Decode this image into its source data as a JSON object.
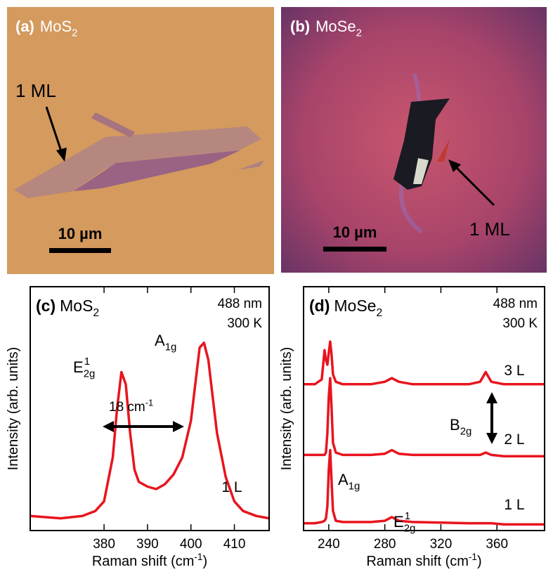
{
  "panels": [
    {
      "label": "(a)",
      "material": {
        "base": "MoS",
        "sub": "2"
      },
      "scale_bar": "10 µm",
      "annotation": "1 ML"
    },
    {
      "label": "(b)",
      "material": {
        "base": "MoSe",
        "sub": "2"
      },
      "scale_bar": "10 µm",
      "annotation": "1 ML"
    }
  ],
  "chart_data": [
    {
      "type": "line",
      "label": "(c)",
      "material": {
        "base": "MoS",
        "sub": "2"
      },
      "conditions": [
        "488 nm",
        "300 K"
      ],
      "xlabel": {
        "text": "Raman shift (cm",
        "sup": "-1",
        "end": ")"
      },
      "ylabel": "Intensity (arb. units)",
      "x": [
        363,
        370,
        375,
        378,
        380,
        382,
        383,
        384,
        385,
        386,
        387,
        388,
        390,
        392,
        394,
        396,
        398,
        400,
        401,
        402,
        403,
        404,
        405,
        406,
        408,
        410,
        412,
        415,
        418
      ],
      "series": [
        {
          "name": "1 L",
          "color": "#e8141e",
          "values": [
            0.06,
            0.05,
            0.06,
            0.08,
            0.12,
            0.3,
            0.5,
            0.65,
            0.6,
            0.4,
            0.25,
            0.2,
            0.18,
            0.17,
            0.19,
            0.23,
            0.3,
            0.45,
            0.6,
            0.75,
            0.77,
            0.7,
            0.55,
            0.4,
            0.22,
            0.12,
            0.08,
            0.06,
            0.05
          ]
        }
      ],
      "xlim": [
        363,
        418
      ],
      "ylim": [
        0,
        1
      ],
      "xticks": [
        380,
        390,
        400,
        410
      ],
      "peaks": [
        {
          "base": "E",
          "sub": "2g",
          "sup": "1"
        },
        {
          "base": "A",
          "sub": "1g"
        }
      ],
      "splitting": {
        "text": "18 cm",
        "sup": "-1"
      }
    },
    {
      "type": "line",
      "label": "(d)",
      "material": {
        "base": "MoSe",
        "sub": "2"
      },
      "conditions": [
        "488 nm",
        "300 K"
      ],
      "xlabel": {
        "text": "Raman shift (cm",
        "sup": "-1",
        "end": ")"
      },
      "ylabel": "Intensity (arb. units)",
      "x": [
        222,
        230,
        235,
        237,
        238,
        239,
        240,
        241,
        242,
        243,
        245,
        250,
        270,
        280,
        285,
        290,
        300,
        340,
        348,
        350,
        352,
        354,
        356,
        365,
        394
      ],
      "series": [
        {
          "name": "1 L",
          "color": "#e8141e",
          "values": [
            0.03,
            0.03,
            0.035,
            0.04,
            0.05,
            0.1,
            0.25,
            0.33,
            0.2,
            0.08,
            0.04,
            0.035,
            0.035,
            0.04,
            0.055,
            0.04,
            0.035,
            0.03,
            0.03,
            0.03,
            0.03,
            0.03,
            0.03,
            0.025,
            0.025
          ]
        },
        {
          "name": "2 L",
          "color": "#e8141e",
          "values": [
            0.31,
            0.31,
            0.31,
            0.31,
            0.32,
            0.4,
            0.55,
            0.625,
            0.5,
            0.36,
            0.32,
            0.31,
            0.31,
            0.315,
            0.33,
            0.315,
            0.31,
            0.31,
            0.31,
            0.315,
            0.32,
            0.315,
            0.31,
            0.305,
            0.305
          ]
        },
        {
          "name": "3 L",
          "color": "#e8141e",
          "values": [
            0.6,
            0.6,
            0.62,
            0.74,
            0.7,
            0.68,
            0.73,
            0.775,
            0.72,
            0.64,
            0.61,
            0.6,
            0.6,
            0.61,
            0.625,
            0.61,
            0.6,
            0.6,
            0.61,
            0.63,
            0.65,
            0.63,
            0.61,
            0.6,
            0.6
          ]
        }
      ],
      "xlim": [
        222,
        394
      ],
      "ylim": [
        0,
        1
      ],
      "xticks": [
        240,
        280,
        320,
        360
      ],
      "peaks": [
        {
          "base": "A",
          "sub": "1g"
        },
        {
          "base": "E",
          "sub": "2g",
          "sup": "1"
        },
        {
          "base": "B",
          "sub": "2g"
        }
      ]
    }
  ]
}
